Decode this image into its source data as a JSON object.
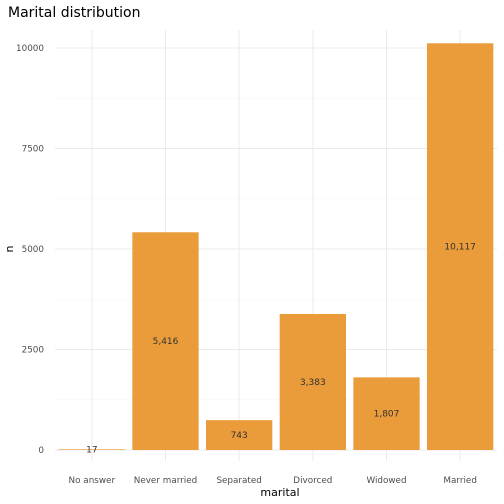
{
  "chart_data": {
    "type": "bar",
    "title": "Marital distribution",
    "xlabel": "marital",
    "ylabel": "n",
    "categories": [
      "No answer",
      "Never married",
      "Separated",
      "Divorced",
      "Widowed",
      "Married"
    ],
    "values": [
      17,
      5416,
      743,
      3383,
      1807,
      10117
    ],
    "data_labels": [
      "17",
      "5,416",
      "743",
      "3,383",
      "1,807",
      "10,117"
    ],
    "ylim": [
      0,
      10117
    ],
    "yticks": [
      0,
      2500,
      5000,
      7500,
      10000
    ],
    "ytick_labels": [
      "0",
      "2500",
      "5000",
      "7500",
      "10000"
    ],
    "bar_color": "#EA9B3A",
    "grid": true,
    "legend": "none"
  }
}
